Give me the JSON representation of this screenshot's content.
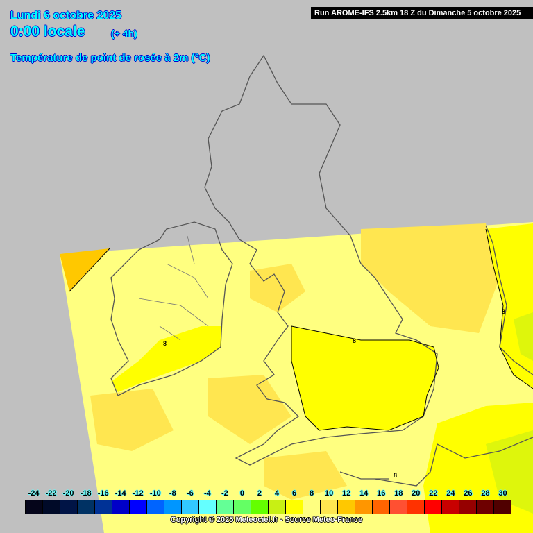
{
  "header": {
    "date": "Lundi 6 octobre 2025",
    "time": "0:00 locale",
    "lead": "(+ 4h)",
    "parameter": "Température de point de rosée à 2m (°C)",
    "run_info": "Run AROME-IFS 2.5km 18 Z du Dimanche 5 octobre 2025"
  },
  "map": {
    "background_color": "#c0c0c0",
    "coastline_color": "#555555",
    "contour_labels": [
      "8",
      "8",
      "8",
      "8"
    ]
  },
  "legend": {
    "labels": [
      "-24",
      "-22",
      "-20",
      "-18",
      "-16",
      "-14",
      "-12",
      "-10",
      "-8",
      "-6",
      "-4",
      "-2",
      "0",
      "2",
      "4",
      "6",
      "8",
      "10",
      "12",
      "14",
      "16",
      "18",
      "20",
      "22",
      "24",
      "26",
      "28",
      "30"
    ],
    "colors": [
      "#05051a",
      "#000a28",
      "#001446",
      "#003264",
      "#003296",
      "#0000c8",
      "#0000ff",
      "#0064ff",
      "#0096ff",
      "#32c8ff",
      "#64ffff",
      "#64ff96",
      "#64ff64",
      "#64ff00",
      "#c8f014",
      "#ffff00",
      "#ffff80",
      "#ffe650",
      "#ffc800",
      "#ff9600",
      "#ff6400",
      "#ff5032",
      "#ff3200",
      "#ff0000",
      "#c80000",
      "#960000",
      "#6e0000",
      "#500000"
    ]
  },
  "footer": {
    "copyright": "Copyright © 2025 Meteociel.fr - Source Meteo-France"
  }
}
